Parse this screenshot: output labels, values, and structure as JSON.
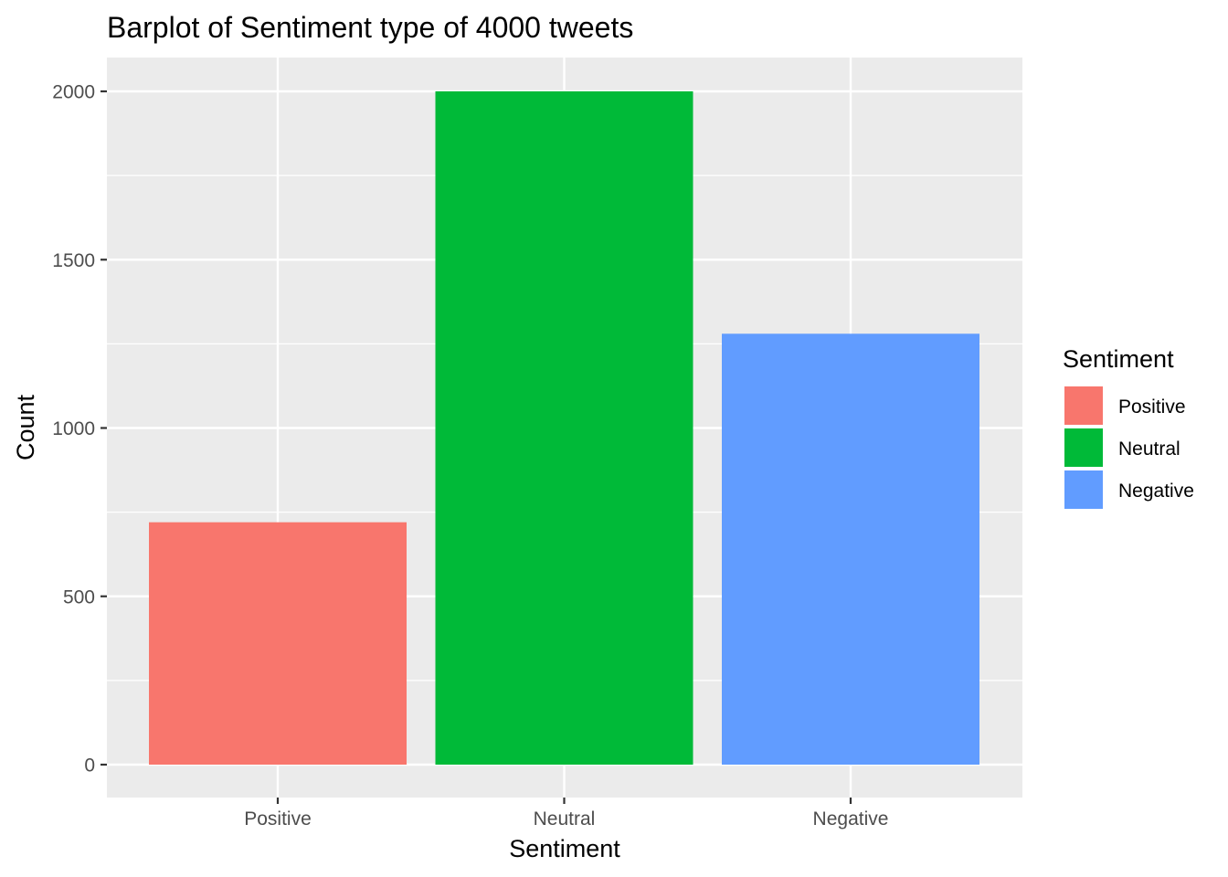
{
  "chart_data": {
    "type": "bar",
    "title": "Barplot of Sentiment type of 4000 tweets",
    "xlabel": "Sentiment",
    "ylabel": "Count",
    "categories": [
      "Positive",
      "Neutral",
      "Negative"
    ],
    "values": [
      720,
      2000,
      1280
    ],
    "colors": [
      "#F8766D",
      "#00BA38",
      "#619CFF"
    ],
    "ylim": [
      -100,
      2100
    ],
    "yticks": [
      0,
      500,
      1000,
      1500,
      2000
    ],
    "ytick_labels": [
      "0",
      "500",
      "1000",
      "1500",
      "2000"
    ],
    "grid": true,
    "panel_background": "#EBEBEB",
    "legend": {
      "title": "Sentiment",
      "position": "right",
      "entries": [
        {
          "label": "Positive",
          "color": "#F8766D"
        },
        {
          "label": "Neutral",
          "color": "#00BA38"
        },
        {
          "label": "Negative",
          "color": "#619CFF"
        }
      ]
    }
  }
}
